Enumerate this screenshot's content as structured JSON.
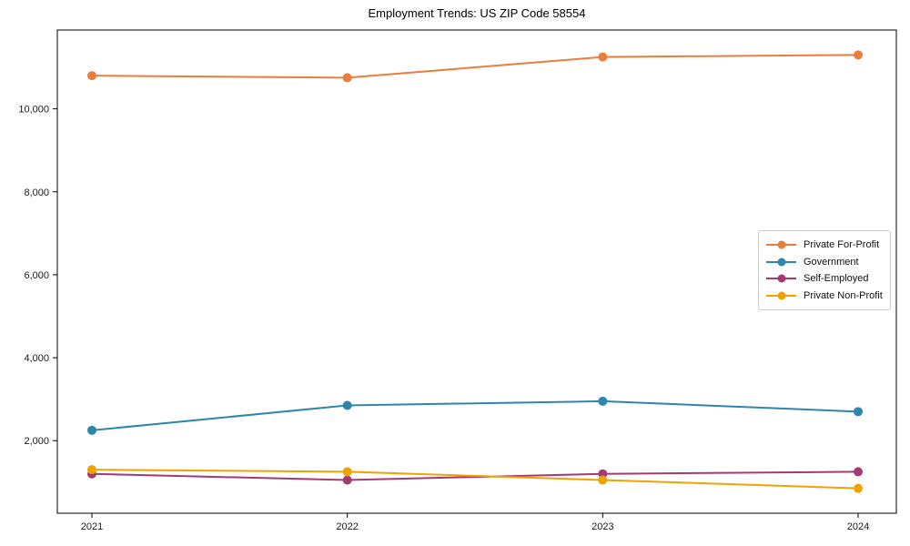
{
  "window": {
    "background_color": "#ffffff"
  },
  "chart_data": {
    "type": "line",
    "title": "Employment Trends: US ZIP Code 58554",
    "categories": [
      "2021",
      "2022",
      "2023",
      "2024"
    ],
    "series": [
      {
        "name": "Private For-Profit",
        "color": "#E87D3E",
        "values": [
          10800,
          10750,
          11250,
          11300
        ]
      },
      {
        "name": "Government",
        "color": "#2E86AB",
        "values": [
          2250,
          2850,
          2950,
          2700
        ]
      },
      {
        "name": "Self-Employed",
        "color": "#A23B72",
        "values": [
          1200,
          1050,
          1200,
          1250
        ]
      },
      {
        "name": "Private Non-Profit",
        "color": "#F0A202",
        "values": [
          1300,
          1250,
          1050,
          850
        ]
      }
    ],
    "xlabel": "",
    "ylabel": "",
    "y_ticks": [
      2000,
      4000,
      6000,
      8000,
      10000
    ],
    "y_tick_labels": [
      "2,000",
      "4,000",
      "6,000",
      "8,000",
      "10,000"
    ],
    "ylim": [
      250,
      11900
    ],
    "grid": false,
    "legend_position": "center right",
    "marker": "circle",
    "line_width": 2,
    "marker_radius": 5,
    "axis_color": "#000000"
  }
}
